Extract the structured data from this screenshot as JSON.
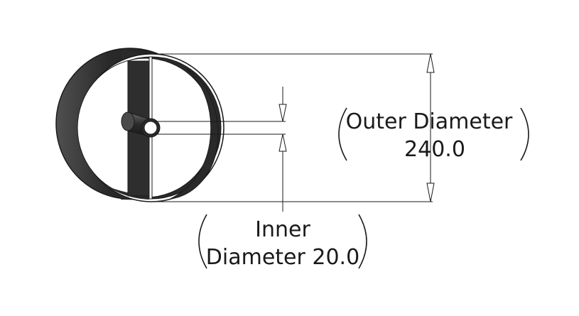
{
  "dimensions": {
    "outer": {
      "line1": "Outer Diameter",
      "line2": "240.0"
    },
    "inner": {
      "line1": "Inner",
      "line2": "Diameter 20.0"
    }
  },
  "colors": {
    "part_dark": "#2a2a2a",
    "part_mid": "#4a4a4a",
    "edge": "#1a1a1a",
    "background": "#ffffff"
  }
}
